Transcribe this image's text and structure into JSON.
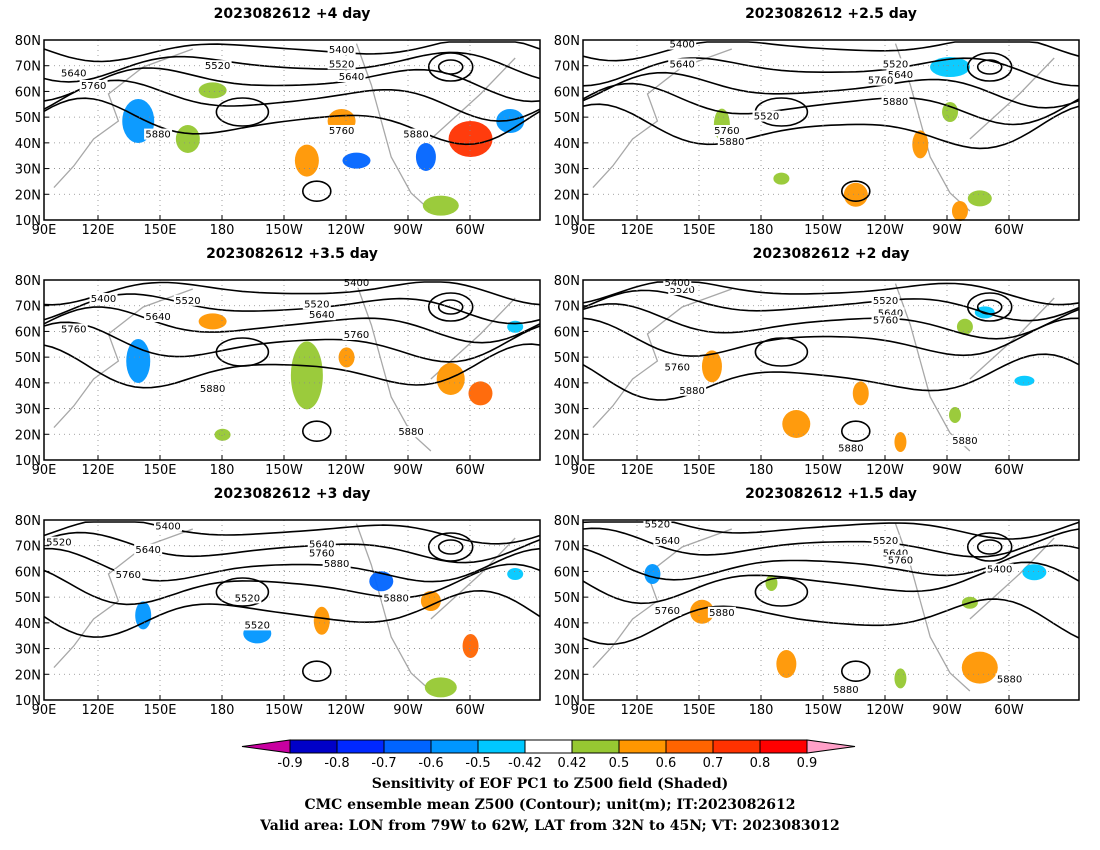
{
  "panels": [
    {
      "title": "2023082612  +4 day"
    },
    {
      "title": "2023082612  +2.5 day"
    },
    {
      "title": "2023082612  +3.5 day"
    },
    {
      "title": "2023082612  +2 day"
    },
    {
      "title": "2023082612  +3 day"
    },
    {
      "title": "2023082612  +1.5 day"
    }
  ],
  "axes": {
    "lat_ticks": [
      "80N",
      "70N",
      "60N",
      "50N",
      "40N",
      "30N",
      "20N",
      "10N"
    ],
    "lon_ticks": [
      "90E",
      "120E",
      "150E",
      "180",
      "150W",
      "120W",
      "90W",
      "60W"
    ]
  },
  "contour_labels": {
    "p0": [
      "5400",
      "5520",
      "5640",
      "5760",
      "5880",
      "5640",
      "5520",
      "5760",
      "5880"
    ],
    "p1": [
      "5400",
      "5640",
      "5520",
      "5640",
      "5760",
      "5880",
      "5520",
      "5760",
      "5880"
    ],
    "p2": [
      "5400",
      "5520",
      "5640",
      "5760",
      "5520",
      "5640",
      "5760",
      "5880",
      "5400",
      "5880"
    ],
    "p3": [
      "5520",
      "5400",
      "5520",
      "5640",
      "5760",
      "5760",
      "5880",
      "5880",
      "5880"
    ],
    "p4": [
      "5400",
      "5520",
      "5640",
      "5760",
      "5520",
      "5640",
      "5760",
      "5880",
      "5520",
      "5880"
    ],
    "p5": [
      "5520",
      "5640",
      "5520",
      "5640",
      "5760",
      "5400",
      "5760",
      "5880",
      "5880",
      "5880"
    ]
  },
  "colorbar": {
    "labels": [
      "-0.9",
      "-0.8",
      "-0.7",
      "-0.6",
      "-0.5",
      "-0.42",
      "0.42",
      "0.5",
      "0.6",
      "0.7",
      "0.8",
      "0.9"
    ],
    "colors": [
      "#0000c8",
      "#0028ff",
      "#0064ff",
      "#0096ff",
      "#00c8ff",
      "#ffffff",
      "#96c832",
      "#ff9600",
      "#ff6400",
      "#ff3200",
      "#ff0000"
    ],
    "under_color": "#c800a0",
    "over_color": "#ffa0c8"
  },
  "footer": {
    "line1": "Sensitivity of EOF PC1 to Z500 field (Shaded)",
    "line2": "CMC ensemble mean Z500 (Contour); unit(m); IT:2023082612",
    "line3": "Valid area: LON from 79W to 62W, LAT from 32N to 45N; VT: 2023083012"
  }
}
